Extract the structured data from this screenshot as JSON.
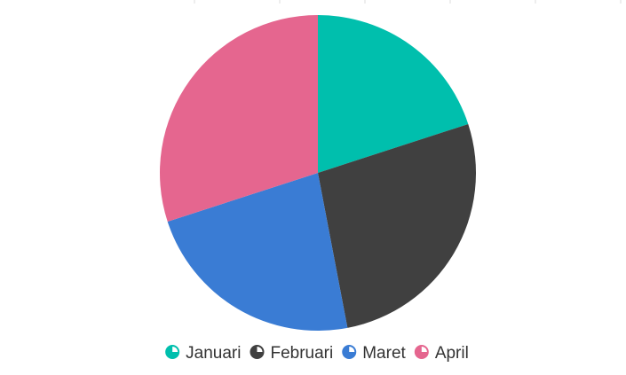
{
  "chart_data": {
    "type": "pie",
    "categories": [
      "Januari",
      "Februari",
      "Maret",
      "April"
    ],
    "values": [
      20,
      27,
      23,
      30
    ],
    "colors": [
      "#00bfad",
      "#404040",
      "#3a7cd4",
      "#e5668f"
    ],
    "legend_position": "bottom",
    "start_angle": "top, clockwise"
  }
}
